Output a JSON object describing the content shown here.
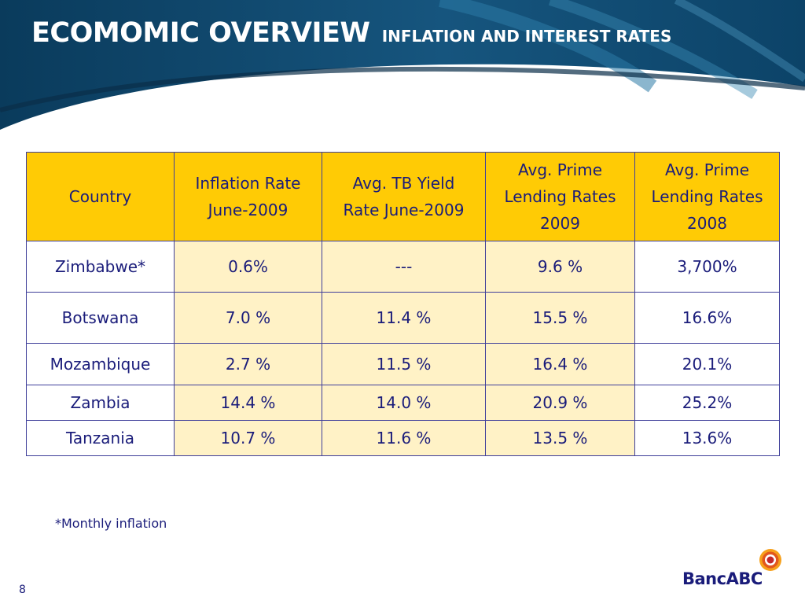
{
  "slide": {
    "title_main": "ECOMOMIC OVERVIEW",
    "title_sub": "INFLATION AND INTEREST RATES",
    "footnote": "*Monthly inflation",
    "page_number": "8",
    "logo_text": "BancABC"
  },
  "colors": {
    "header_dark": "#0a3b5c",
    "header_light": "#1e6d96",
    "header_row": "#ffcb05",
    "shaded_cell": "#fff2c6",
    "text": "#1a1c7a"
  },
  "table": {
    "headers": [
      [
        "Country"
      ],
      [
        "Inflation Rate",
        "June-2009"
      ],
      [
        "Avg. TB Yield",
        "Rate June-2009"
      ],
      [
        "Avg. Prime",
        "Lending Rates",
        "2009"
      ],
      [
        "Avg. Prime",
        "Lending Rates",
        "2008"
      ]
    ],
    "rows": [
      [
        "Zimbabwe*",
        "0.6%",
        "---",
        "9.6 %",
        "3,700%"
      ],
      [
        "Botswana",
        "7.0 %",
        "11.4 %",
        "15.5 %",
        "16.6%"
      ],
      [
        "Mozambique",
        "2.7 %",
        "11.5 %",
        "16.4 %",
        "20.1%"
      ],
      [
        "Zambia",
        "14.4 %",
        "14.0 %",
        "20.9 %",
        "25.2%"
      ],
      [
        "Tanzania",
        "10.7 %",
        "11.6 %",
        "13.5 %",
        "13.6%"
      ]
    ]
  }
}
